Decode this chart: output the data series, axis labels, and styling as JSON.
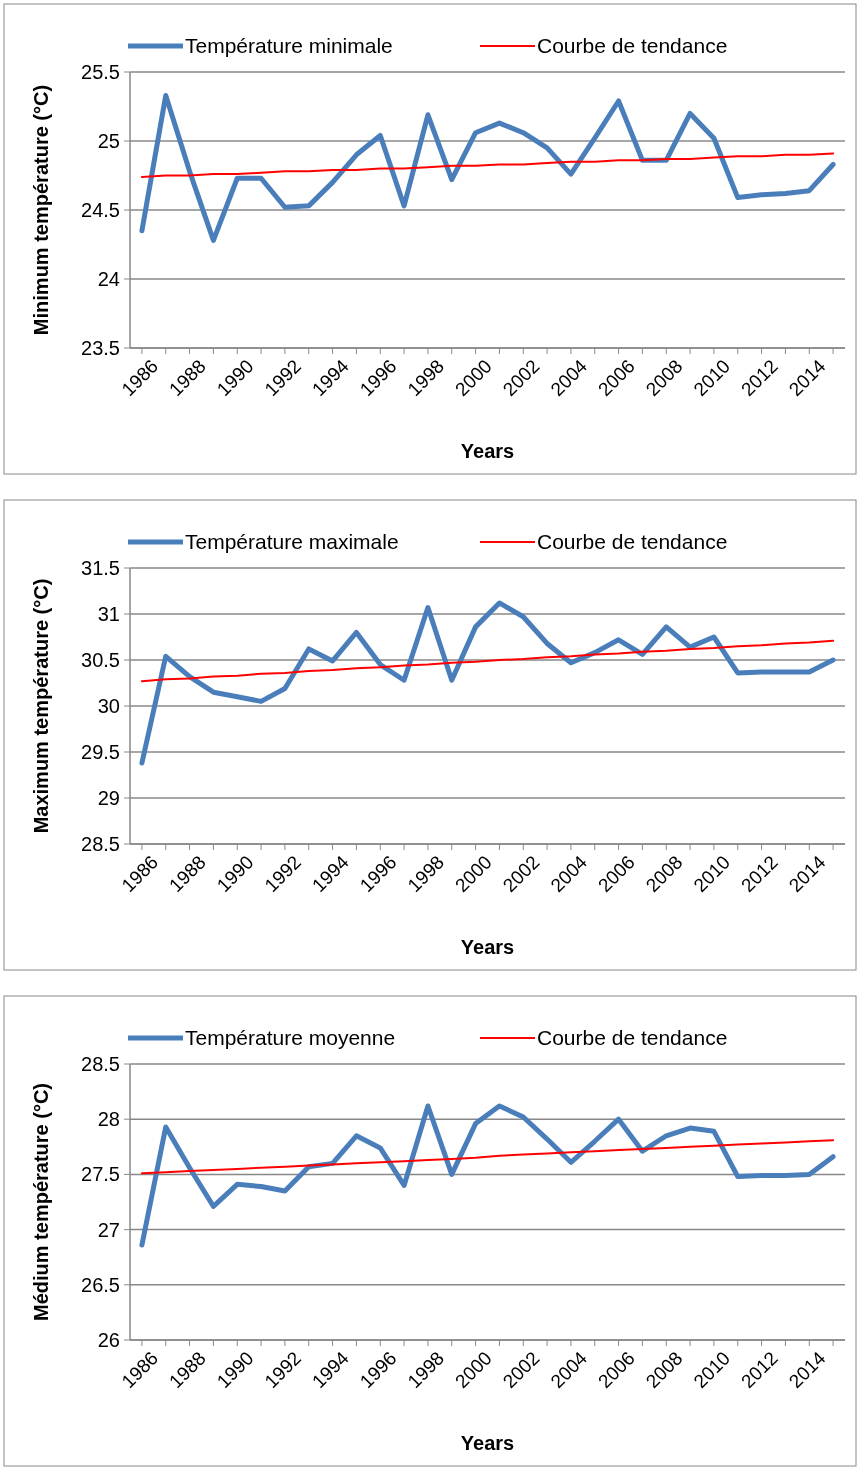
{
  "chart_data": [
    {
      "type": "line",
      "xlabel": "Years",
      "ylabel": "Minimum température (°C)",
      "x": [
        1986,
        1987,
        1988,
        1989,
        1990,
        1991,
        1992,
        1993,
        1994,
        1995,
        1996,
        1997,
        1998,
        1999,
        2000,
        2001,
        2002,
        2003,
        2004,
        2005,
        2006,
        2007,
        2008,
        2009,
        2010,
        2011,
        2012,
        2013,
        2014,
        2015
      ],
      "xlim": [
        1985.5,
        2015.5
      ],
      "xticks": [
        1986,
        {
          "value": 1987,
          "label": null
        },
        1988,
        {
          "value": 1989,
          "label": null
        },
        1990,
        {
          "value": 1991,
          "label": null
        },
        1992,
        {
          "value": 1993,
          "label": null
        },
        1994,
        {
          "value": 1995,
          "label": null
        },
        1996,
        {
          "value": 1997,
          "label": null
        },
        1998,
        {
          "value": 1999,
          "label": null
        },
        2000,
        {
          "value": 2001,
          "label": null
        },
        2002,
        {
          "value": 2003,
          "label": null
        },
        2004,
        {
          "value": 2005,
          "label": null
        },
        2006,
        {
          "value": 2007,
          "label": null
        },
        2008,
        {
          "value": 2009,
          "label": null
        },
        2010,
        {
          "value": 2011,
          "label": null
        },
        2012,
        {
          "value": 2013,
          "label": null
        },
        2014,
        {
          "value": 2015,
          "label": null
        }
      ],
      "ylim": [
        23.5,
        25.5
      ],
      "yticks": [
        23.5,
        24,
        24.5,
        25,
        25.5
      ],
      "grid": "y",
      "legend": "top",
      "marker": "none",
      "series": [
        {
          "name": "Température minimale",
          "color": "#4a7ebb",
          "values": [
            24.35,
            25.33,
            24.78,
            24.28,
            24.73,
            24.73,
            24.52,
            24.53,
            24.7,
            24.9,
            25.04,
            24.53,
            25.19,
            24.72,
            25.06,
            25.13,
            25.06,
            24.95,
            24.76,
            25.02,
            25.29,
            24.86,
            24.86,
            25.2,
            25.02,
            24.59,
            24.61,
            24.62,
            24.64,
            24.83
          ]
        },
        {
          "name": "Courbe de tendance",
          "color": "#ff0000",
          "values": [
            24.74,
            24.75,
            24.75,
            24.76,
            24.76,
            24.77,
            24.78,
            24.78,
            24.79,
            24.79,
            24.8,
            24.8,
            24.81,
            24.82,
            24.82,
            24.83,
            24.83,
            24.84,
            24.85,
            24.85,
            24.86,
            24.86,
            24.87,
            24.87,
            24.88,
            24.89,
            24.89,
            24.9,
            24.9,
            24.91
          ]
        }
      ]
    },
    {
      "type": "line",
      "xlabel": "Years",
      "ylabel": "Maximum température (°C)",
      "x": [
        1986,
        1987,
        1988,
        1989,
        1990,
        1991,
        1992,
        1993,
        1994,
        1995,
        1996,
        1997,
        1998,
        1999,
        2000,
        2001,
        2002,
        2003,
        2004,
        2005,
        2006,
        2007,
        2008,
        2009,
        2010,
        2011,
        2012,
        2013,
        2014,
        2015
      ],
      "xlim": [
        1985.5,
        2015.5
      ],
      "xticks": [
        1986,
        {
          "value": 1987,
          "label": null
        },
        1988,
        {
          "value": 1989,
          "label": null
        },
        1990,
        {
          "value": 1991,
          "label": null
        },
        1992,
        {
          "value": 1993,
          "label": null
        },
        1994,
        {
          "value": 1995,
          "label": null
        },
        1996,
        {
          "value": 1997,
          "label": null
        },
        1998,
        {
          "value": 1999,
          "label": null
        },
        2000,
        {
          "value": 2001,
          "label": null
        },
        2002,
        {
          "value": 2003,
          "label": null
        },
        2004,
        {
          "value": 2005,
          "label": null
        },
        2006,
        {
          "value": 2007,
          "label": null
        },
        2008,
        {
          "value": 2009,
          "label": null
        },
        2010,
        {
          "value": 2011,
          "label": null
        },
        2012,
        {
          "value": 2013,
          "label": null
        },
        2014,
        {
          "value": 2015,
          "label": null
        }
      ],
      "ylim": [
        28.5,
        31.5
      ],
      "yticks": [
        28.5,
        29,
        29.5,
        30,
        30.5,
        31,
        31.5
      ],
      "grid": "y",
      "legend": "top",
      "marker": "none",
      "series": [
        {
          "name": "Température maximale",
          "color": "#4a7ebb",
          "values": [
            29.38,
            30.54,
            30.32,
            30.15,
            30.1,
            30.05,
            30.19,
            30.62,
            30.49,
            30.8,
            30.45,
            30.28,
            31.07,
            30.28,
            30.86,
            31.12,
            30.97,
            30.68,
            30.47,
            30.58,
            30.72,
            30.56,
            30.86,
            30.64,
            30.75,
            30.36,
            30.37,
            30.37,
            30.37,
            30.5
          ]
        },
        {
          "name": "Courbe de tendance",
          "color": "#ff0000",
          "values": [
            30.27,
            30.29,
            30.3,
            30.32,
            30.33,
            30.35,
            30.36,
            30.38,
            30.39,
            30.41,
            30.42,
            30.44,
            30.45,
            30.47,
            30.48,
            30.5,
            30.51,
            30.53,
            30.54,
            30.56,
            30.57,
            30.59,
            30.6,
            30.62,
            30.63,
            30.65,
            30.66,
            30.68,
            30.69,
            30.71
          ]
        }
      ]
    },
    {
      "type": "line",
      "xlabel": "Years",
      "ylabel": "Médium température (°C)",
      "x": [
        1986,
        1987,
        1988,
        1989,
        1990,
        1991,
        1992,
        1993,
        1994,
        1995,
        1996,
        1997,
        1998,
        1999,
        2000,
        2001,
        2002,
        2003,
        2004,
        2005,
        2006,
        2007,
        2008,
        2009,
        2010,
        2011,
        2012,
        2013,
        2014,
        2015
      ],
      "xlim": [
        1985.5,
        2015.5
      ],
      "xticks": [
        1986,
        {
          "value": 1987,
          "label": null
        },
        1988,
        {
          "value": 1989,
          "label": null
        },
        1990,
        {
          "value": 1991,
          "label": null
        },
        1992,
        {
          "value": 1993,
          "label": null
        },
        1994,
        {
          "value": 1995,
          "label": null
        },
        1996,
        {
          "value": 1997,
          "label": null
        },
        1998,
        {
          "value": 1999,
          "label": null
        },
        2000,
        {
          "value": 2001,
          "label": null
        },
        2002,
        {
          "value": 2003,
          "label": null
        },
        2004,
        {
          "value": 2005,
          "label": null
        },
        2006,
        {
          "value": 2007,
          "label": null
        },
        2008,
        {
          "value": 2009,
          "label": null
        },
        2010,
        {
          "value": 2011,
          "label": null
        },
        2012,
        {
          "value": 2013,
          "label": null
        },
        2014,
        {
          "value": 2015,
          "label": null
        }
      ],
      "ylim": [
        26,
        28.5
      ],
      "yticks": [
        26,
        26.5,
        27,
        27.5,
        28,
        28.5
      ],
      "grid": "y",
      "legend": "top",
      "marker": "none",
      "series": [
        {
          "name": "Température moyenne",
          "color": "#4a7ebb",
          "values": [
            26.86,
            27.93,
            27.56,
            27.21,
            27.41,
            27.39,
            27.35,
            27.57,
            27.6,
            27.85,
            27.74,
            27.4,
            28.12,
            27.5,
            27.96,
            28.12,
            28.02,
            27.82,
            27.61,
            27.8,
            28.0,
            27.71,
            27.85,
            27.92,
            27.89,
            27.48,
            27.49,
            27.49,
            27.5,
            27.66
          ]
        },
        {
          "name": "Courbe de tendance",
          "color": "#ff0000",
          "values": [
            27.51,
            27.52,
            27.53,
            27.54,
            27.55,
            27.56,
            27.57,
            27.58,
            27.59,
            27.6,
            27.61,
            27.62,
            27.63,
            27.64,
            27.65,
            27.67,
            27.68,
            27.69,
            27.7,
            27.71,
            27.72,
            27.73,
            27.74,
            27.75,
            27.76,
            27.77,
            27.78,
            27.79,
            27.8,
            27.81
          ]
        }
      ]
    }
  ]
}
